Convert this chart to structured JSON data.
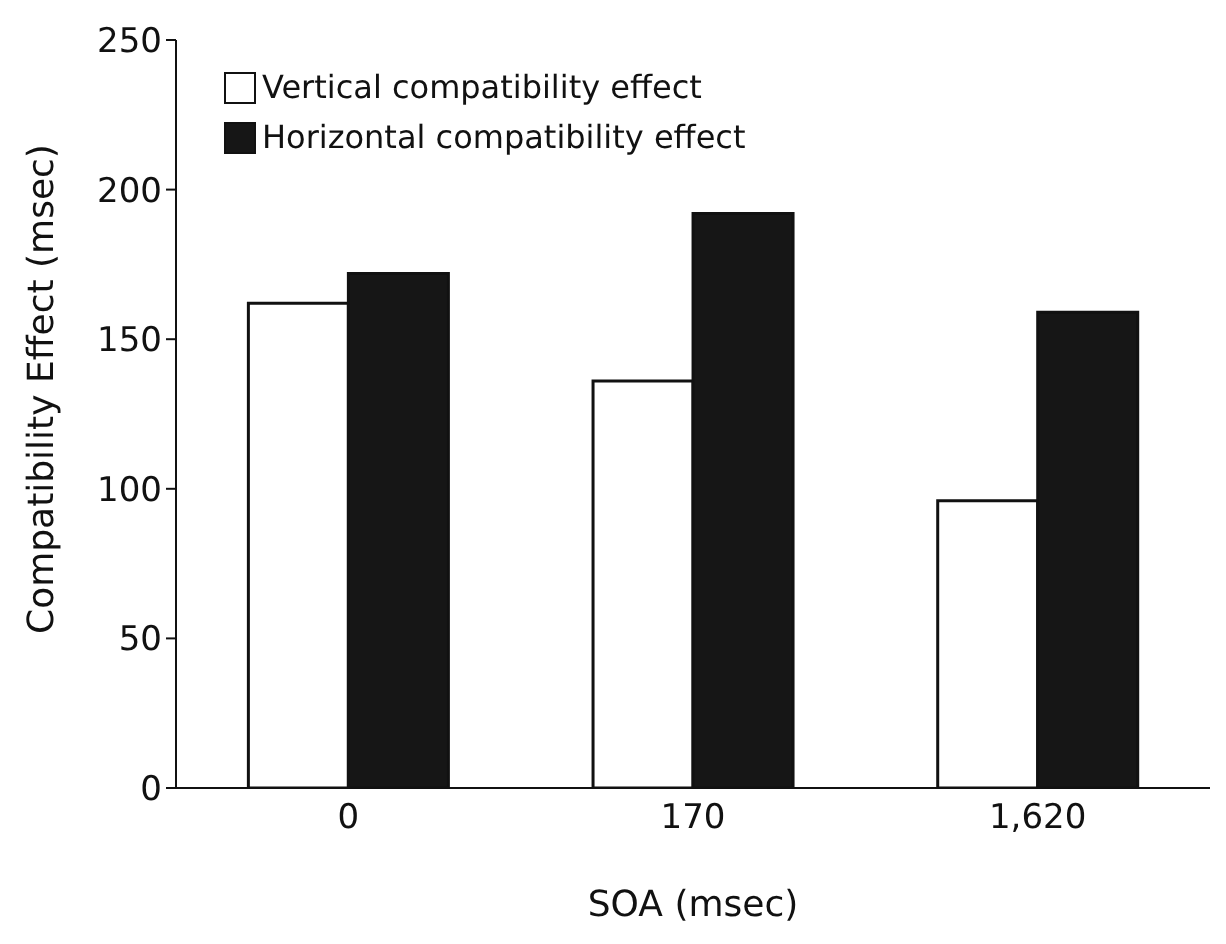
{
  "chart_data": {
    "type": "bar",
    "xlabel": "SOA (msec)",
    "ylabel": "Compatibility Effect (msec)",
    "categories": [
      "0",
      "170",
      "1,620"
    ],
    "series": [
      {
        "name": "Vertical compatibility effect",
        "color": "#ffffff",
        "values": [
          162,
          136,
          96
        ]
      },
      {
        "name": "Horizontal compatibility effect",
        "color": "#161616",
        "values": [
          172,
          192,
          159
        ]
      }
    ],
    "ylim": [
      0,
      250
    ],
    "yticks": [
      0,
      50,
      100,
      150,
      200,
      250
    ],
    "grid": false,
    "legend": "top left"
  }
}
